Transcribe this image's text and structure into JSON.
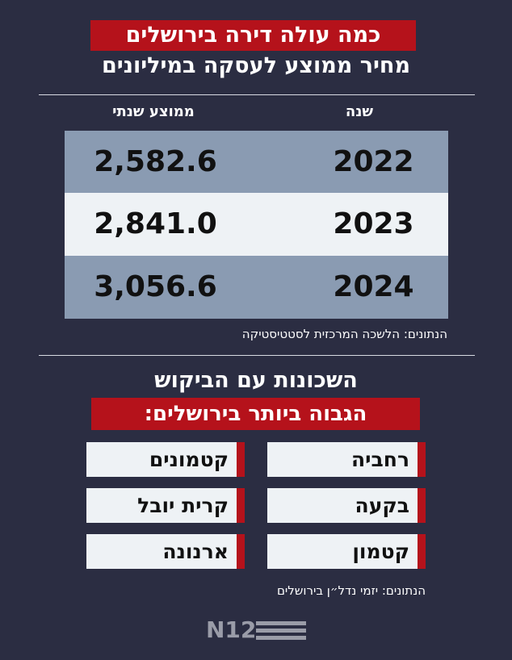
{
  "header": {
    "title": "כמה עולה דירה בירושלים",
    "subtitle": "מחיר ממוצע לעסקה במיליונים"
  },
  "table": {
    "columns": [
      "שנה",
      "ממוצע שנתי"
    ],
    "rows": [
      [
        "2022",
        "2,582.6"
      ],
      [
        "2023",
        "2,841.0"
      ],
      [
        "2024",
        "3,056.6"
      ]
    ],
    "source": "הנתונים: הלשכה המרכזית לסטטיסטיקה"
  },
  "neighborhoods": {
    "title": "השכונות עם הביקוש",
    "highlight": "הגבוה ביותר בירושלים:",
    "items": [
      "רחביה",
      "קטמונים",
      "בקעה",
      "קרית יובל",
      "קטמון",
      "ארנונה"
    ],
    "source": "הנתונים: יזמי נדל״ן בירושלים"
  },
  "logo": "N12"
}
